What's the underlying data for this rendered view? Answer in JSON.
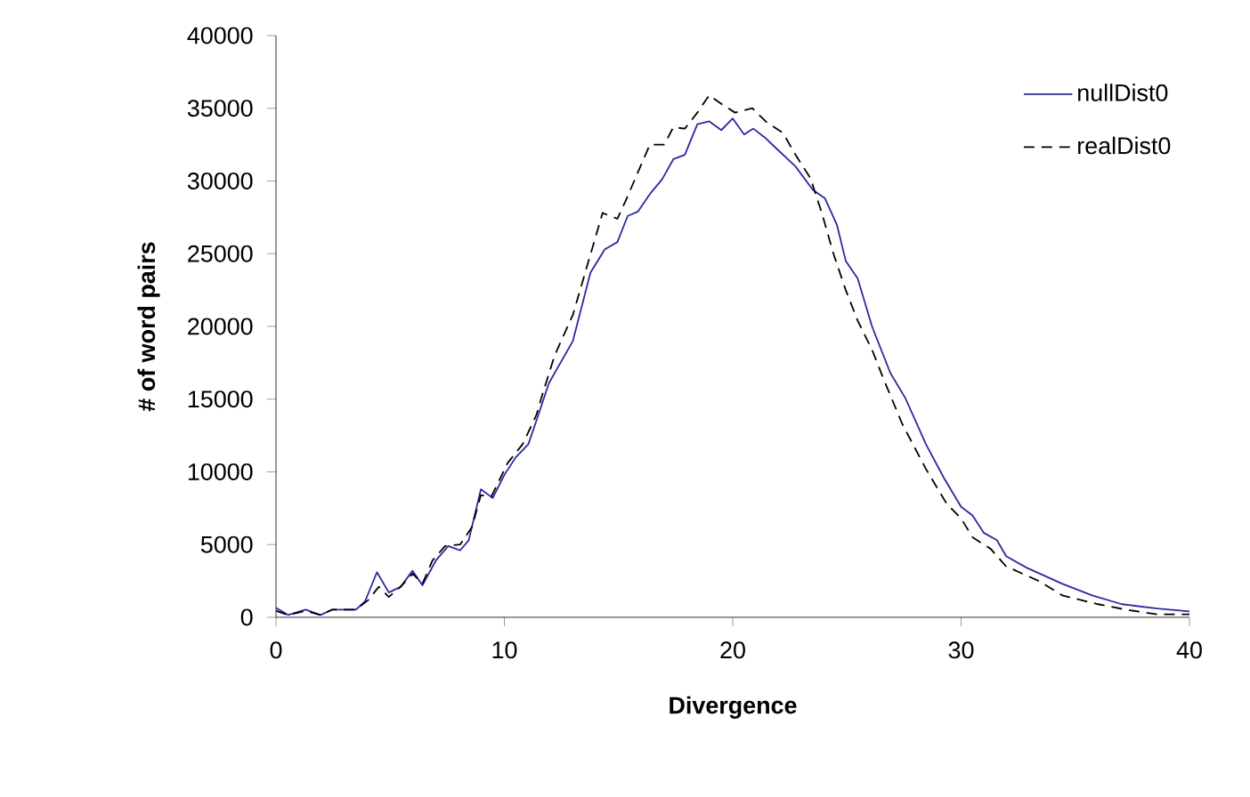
{
  "chart_data": {
    "type": "line",
    "xlabel": "Divergence",
    "ylabel": "# of word pairs",
    "xlim": [
      0,
      40
    ],
    "ylim": [
      0,
      40000
    ],
    "xticks": [
      0,
      10,
      20,
      30,
      40
    ],
    "yticks": [
      0,
      5000,
      10000,
      15000,
      20000,
      25000,
      30000,
      35000,
      40000
    ],
    "grid": false,
    "legend": "top right",
    "marker": "none",
    "series": [
      {
        "name": "nullDist0",
        "color": "#2a2aa0",
        "line_style": "solid",
        "x": [
          0,
          0.52,
          1.3,
          1.95,
          2.47,
          3.5,
          3.9,
          4.42,
          4.94,
          5.46,
          5.98,
          6.41,
          7.0,
          7.54,
          8.06,
          8.44,
          8.97,
          9.49,
          10.0,
          10.5,
          11.05,
          11.4,
          11.95,
          13.0,
          13.77,
          14.4,
          14.95,
          15.4,
          15.85,
          16.37,
          16.9,
          17.4,
          17.9,
          18.45,
          18.97,
          19.5,
          20.0,
          20.5,
          20.9,
          21.4,
          21.8,
          22.75,
          23.5,
          24.04,
          24.56,
          24.95,
          25.47,
          26.1,
          26.9,
          27.55,
          28.46,
          29.24,
          30.0,
          30.5,
          31.0,
          31.57,
          31.97,
          32.88,
          34.44,
          35.74,
          37.04,
          38.6,
          40.0
        ],
        "values": [
          650,
          160,
          530,
          160,
          530,
          530,
          1100,
          3100,
          1700,
          2100,
          3200,
          2200,
          3900,
          4900,
          4600,
          5300,
          8800,
          8200,
          9800,
          11000,
          11900,
          13500,
          16100,
          19000,
          23700,
          25300,
          25800,
          27600,
          27900,
          29100,
          30100,
          31500,
          31800,
          33900,
          34100,
          33500,
          34300,
          33200,
          33600,
          33000,
          32400,
          31000,
          29400,
          28800,
          27000,
          24500,
          23300,
          20000,
          16800,
          15100,
          11900,
          9600,
          7600,
          7000,
          5800,
          5300,
          4200,
          3400,
          2300,
          1500,
          900,
          600,
          400
        ]
      },
      {
        "name": "realDist0",
        "color": "#000000",
        "line_style": "dashed",
        "x": [
          0,
          0.52,
          1.3,
          1.95,
          2.47,
          3.5,
          4.05,
          4.5,
          4.94,
          5.46,
          5.98,
          6.41,
          6.85,
          7.4,
          8.06,
          8.58,
          8.97,
          9.43,
          10.14,
          10.8,
          11.4,
          11.7,
          12.2,
          13.0,
          14.3,
          14.95,
          15.3,
          16.37,
          17.0,
          17.4,
          17.9,
          18.45,
          18.97,
          19.5,
          20.1,
          20.86,
          21.44,
          22.2,
          22.75,
          23.4,
          23.9,
          24.43,
          24.95,
          25.47,
          26.1,
          26.6,
          27.42,
          28.46,
          29.37,
          30.0,
          30.5,
          31.3,
          31.97,
          33.4,
          34.44,
          36.0,
          37.3,
          38.6,
          40.0
        ],
        "values": [
          450,
          160,
          450,
          160,
          530,
          530,
          1200,
          2100,
          1400,
          2100,
          3000,
          2300,
          3900,
          4900,
          5000,
          6200,
          8400,
          8300,
          10600,
          11900,
          13900,
          15500,
          18000,
          20800,
          27800,
          27400,
          28600,
          32500,
          32500,
          33700,
          33600,
          34700,
          35900,
          35300,
          34700,
          35000,
          34100,
          33300,
          31800,
          30200,
          27800,
          24900,
          22500,
          20400,
          18400,
          16400,
          13300,
          10200,
          7800,
          6800,
          5500,
          4700,
          3500,
          2500,
          1500,
          900,
          500,
          200,
          200
        ]
      }
    ]
  }
}
